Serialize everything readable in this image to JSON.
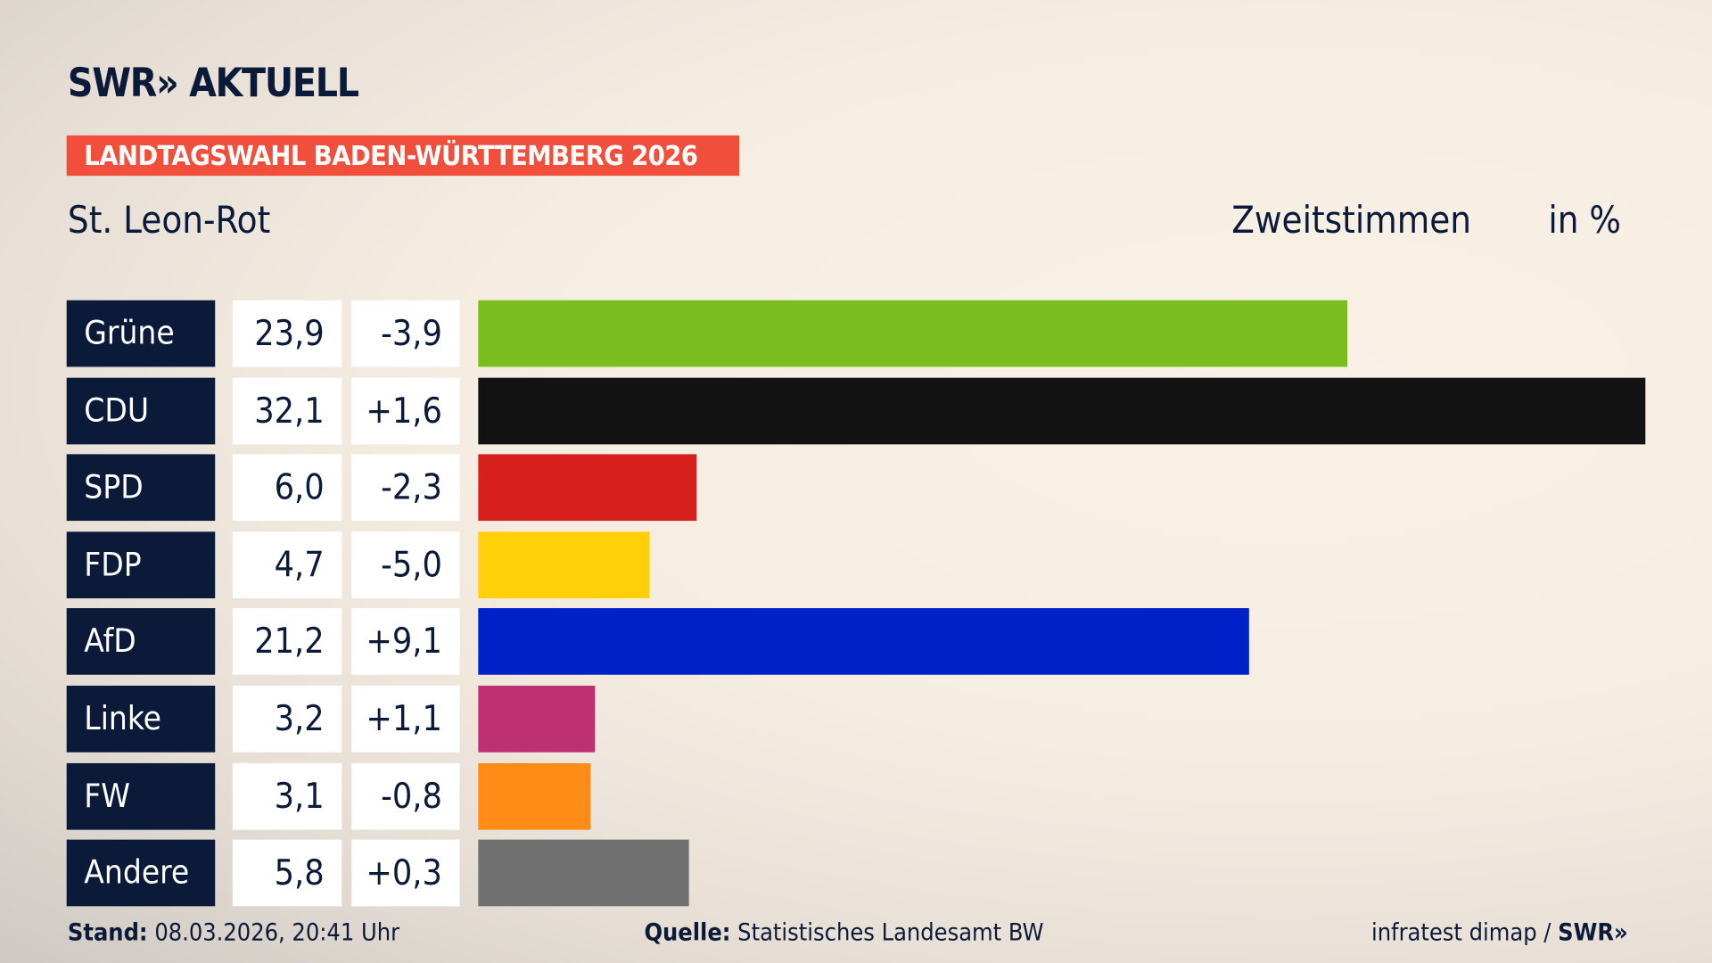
{
  "header": {
    "logo": "SWR» AKTUELL",
    "kicker": "LANDTAGSWAHL BADEN-WÜRTTEMBERG 2026",
    "place": "St. Leon-Rot",
    "measure": "Zweitstimmen",
    "unit": "in %"
  },
  "chart_data": {
    "type": "bar",
    "orientation": "horizontal",
    "categories": [
      "Grüne",
      "CDU",
      "SPD",
      "FDP",
      "AfD",
      "Linke",
      "FW",
      "Andere"
    ],
    "values": [
      23.9,
      32.1,
      6.0,
      4.7,
      21.2,
      3.2,
      3.1,
      5.8
    ],
    "value_labels": [
      "23,9",
      "32,1",
      "6,0",
      "4,7",
      "21,2",
      "3,2",
      "3,1",
      "5,8"
    ],
    "change_labels": [
      "-3,9",
      "+1,6",
      "-2,3",
      "-5,0",
      "+9,1",
      "+1,1",
      "-0,8",
      "+0,3"
    ],
    "colors": [
      "#7bbd1f",
      "#121212",
      "#d7201e",
      "#ffcf0a",
      "#0020c8",
      "#bd3073",
      "#ff8c16",
      "#717171"
    ],
    "xlim": [
      0,
      32.1
    ]
  },
  "footer": {
    "stand_label": "Stand:",
    "stand_value": " 08.03.2026, 20:41 Uhr",
    "source_label": "Quelle:",
    "source_value": " Statistisches Landesamt BW",
    "credit": "infratest dimap / ",
    "credit_logo": "SWR»"
  }
}
